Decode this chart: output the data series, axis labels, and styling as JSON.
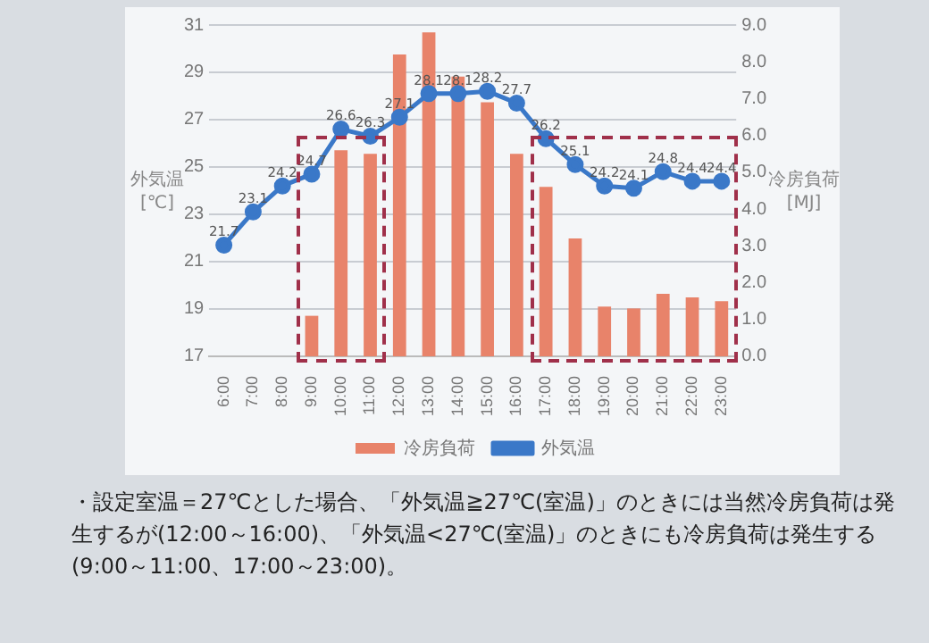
{
  "chart_data": {
    "type": "bar",
    "categories": [
      "6:00",
      "7:00",
      "8:00",
      "9:00",
      "10:00",
      "11:00",
      "12:00",
      "13:00",
      "14:00",
      "15:00",
      "16:00",
      "17:00",
      "18:00",
      "19:00",
      "20:00",
      "21:00",
      "22:00",
      "23:00"
    ],
    "series": [
      {
        "name": "冷房負荷",
        "axis": "y2",
        "color": "#e8836a",
        "values": [
          0,
          0,
          0,
          1.1,
          5.6,
          5.5,
          8.2,
          8.8,
          7.6,
          6.9,
          5.5,
          4.6,
          3.2,
          1.35,
          1.3,
          1.7,
          1.6,
          1.5
        ]
      },
      {
        "name": "外気温",
        "type": "line",
        "axis": "y",
        "color": "#3a78c8",
        "marker": "circle",
        "data_labels": true,
        "values": [
          21.7,
          23.1,
          24.2,
          24.7,
          26.6,
          26.3,
          27.1,
          28.1,
          28.1,
          28.2,
          27.7,
          26.2,
          25.1,
          24.2,
          24.1,
          24.8,
          24.4,
          24.4
        ]
      }
    ],
    "ylabel": "外気温\n[℃]",
    "y2label": "冷房負荷\n[MJ]",
    "ylim": [
      17,
      31
    ],
    "yticks": [
      17,
      19,
      21,
      23,
      25,
      27,
      29,
      31
    ],
    "y2lim": [
      0,
      9
    ],
    "y2ticks": [
      {
        "value": 0,
        "label": "0.0"
      },
      {
        "value": 1,
        "label": "1.0"
      },
      {
        "value": 2,
        "label": "2.0"
      },
      {
        "value": 3,
        "label": "3.0"
      },
      {
        "value": 4,
        "label": "4.0"
      },
      {
        "value": 5,
        "label": "5.0"
      },
      {
        "value": 6,
        "label": "6.0"
      },
      {
        "value": 7,
        "label": "7.0"
      },
      {
        "value": 8,
        "label": "8.0"
      },
      {
        "value": 9,
        "label": "9.0"
      }
    ],
    "grid": "y",
    "legend": "bottom",
    "annotations": [
      "・設定室温＝27℃とした場合、「外気温≧27℃(室温)」のときには当然冷房負荷は発生するが(12:00～16:00)、「外気温<27℃(室温)」のときにも冷房負荷は発生する(9:00～11:00、17:00～23:00)。"
    ]
  }
}
